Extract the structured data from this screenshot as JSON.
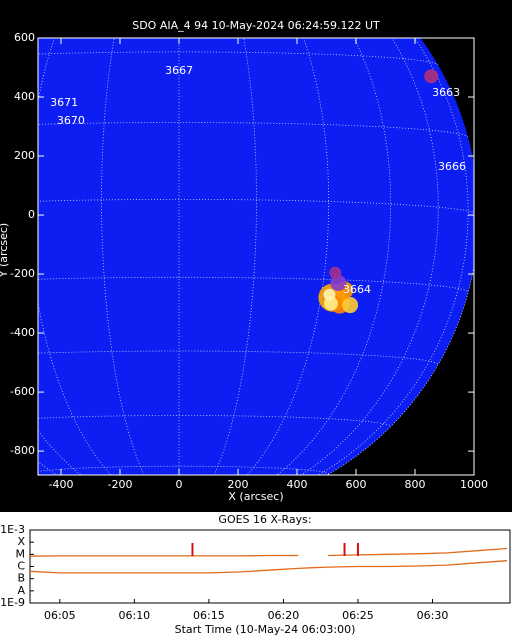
{
  "chart_data": [
    {
      "type": "image",
      "title": "SDO AIA_4 94 10-May-2024 06:24:59.122 UT",
      "x_label": "X (arcsec)",
      "y_label": "Y (arcsec)",
      "xlim": [
        -478,
        1000
      ],
      "ylim": [
        -881,
        600
      ],
      "xticks": [
        -400,
        -200,
        0,
        200,
        400,
        600,
        800,
        1000
      ],
      "yticks": [
        -800,
        -600,
        -400,
        -200,
        0,
        200,
        400,
        600
      ],
      "regions": [
        {
          "label": "3667",
          "x": -47,
          "y": 488
        },
        {
          "label": "3671",
          "x": -437,
          "y": 380
        },
        {
          "label": "3670",
          "x": -414,
          "y": 319
        },
        {
          "label": "3663",
          "x": 858,
          "y": 414
        },
        {
          "label": "3666",
          "x": 878,
          "y": 163
        },
        {
          "label": "3664",
          "x": 556,
          "y": -254
        }
      ]
    },
    {
      "type": "line",
      "title": "GOES 16 X-Rays:",
      "x_label": "Start Time (10-May-24 06:03:00)",
      "log_y": true,
      "xlim": [
        0,
        32.2
      ],
      "ylim": [
        1e-09,
        0.001
      ],
      "xticks": [
        {
          "value": 2,
          "label": "06:05"
        },
        {
          "value": 7,
          "label": "06:10"
        },
        {
          "value": 12,
          "label": "06:15"
        },
        {
          "value": 17,
          "label": "06:20"
        },
        {
          "value": 22,
          "label": "06:25"
        },
        {
          "value": 27,
          "label": "06:30"
        }
      ],
      "yticks": [
        {
          "value": 0.001,
          "label": "1E-3"
        },
        {
          "value": 0.0001,
          "label": "X"
        },
        {
          "value": 1e-05,
          "label": "M"
        },
        {
          "value": 1e-06,
          "label": "C"
        },
        {
          "value": 1e-07,
          "label": "B"
        },
        {
          "value": 1e-08,
          "label": "A"
        },
        {
          "value": 1e-09,
          "label": "1E-9"
        }
      ],
      "x": [
        0,
        2,
        4,
        6,
        8,
        10,
        12,
        14,
        16,
        18,
        19,
        20,
        22,
        24,
        26,
        28,
        30,
        32
      ],
      "series": [
        {
          "color": "#e06a1a",
          "values": [
            7e-06,
            7.5e-06,
            7.5e-06,
            7.5e-06,
            7.5e-06,
            7.5e-06,
            7.5e-06,
            7.5e-06,
            8e-06,
            8e-06,
            null,
            8e-06,
            9e-06,
            1e-05,
            1.1e-05,
            1.3e-05,
            2e-05,
            3e-05
          ]
        },
        {
          "color": "#e06a1a",
          "values": [
            4e-07,
            3e-07,
            3e-07,
            3e-07,
            3e-07,
            3e-07,
            3e-07,
            3.5e-07,
            5e-07,
            7e-07,
            8e-07,
            9e-07,
            1e-06,
            1e-06,
            1.1e-06,
            1.3e-06,
            2e-06,
            3e-06
          ]
        }
      ],
      "event_x": [
        10.9,
        21.1,
        22.0
      ],
      "event_color": "#d01010"
    }
  ]
}
